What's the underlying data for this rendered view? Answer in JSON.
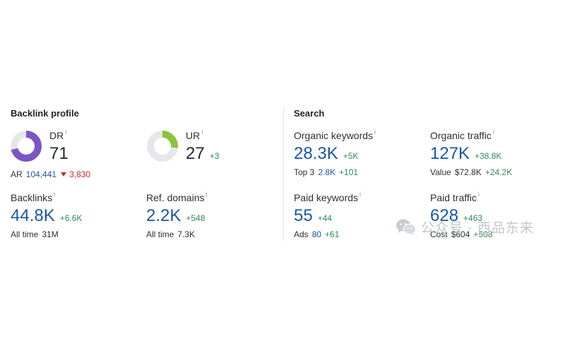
{
  "backlink_profile": {
    "title": "Backlink profile",
    "dr": {
      "label": "DR",
      "value": "71",
      "percent": 71,
      "color": "#7d57c1"
    },
    "ar": {
      "label": "AR",
      "value": "104,441",
      "delta": "3,830"
    },
    "ur": {
      "label": "UR",
      "value": "27",
      "delta": "+3",
      "percent": 27,
      "color": "#8cc43c"
    },
    "backlinks": {
      "label": "Backlinks",
      "value": "44.8K",
      "delta": "+6.6K",
      "sub_label": "All time",
      "sub_value": "31M"
    },
    "ref_domains": {
      "label": "Ref. domains",
      "value": "2.2K",
      "delta": "+548",
      "sub_label": "All time",
      "sub_value": "7.3K"
    }
  },
  "search": {
    "title": "Search",
    "organic_keywords": {
      "label": "Organic keywords",
      "value": "28.3K",
      "delta": "+5K",
      "sub_label": "Top 3",
      "sub_value": "2.8K",
      "sub_delta": "+101"
    },
    "organic_traffic": {
      "label": "Organic traffic",
      "value": "127K",
      "delta": "+38.8K",
      "sub_label": "Value",
      "sub_value": "$72.8K",
      "sub_delta": "+24.2K"
    },
    "paid_keywords": {
      "label": "Paid keywords",
      "value": "55",
      "delta": "+44",
      "sub_label": "Ads",
      "sub_value": "80",
      "sub_delta": "+61"
    },
    "paid_traffic": {
      "label": "Paid traffic",
      "value": "628",
      "delta": "+463",
      "sub_label": "Cost",
      "sub_value": "$604",
      "sub_delta": "+508"
    }
  },
  "info_icon": {
    "glyph": "i"
  },
  "watermark": {
    "text": "公众号 · 西品东来",
    "icon": "wechat-icon"
  }
}
